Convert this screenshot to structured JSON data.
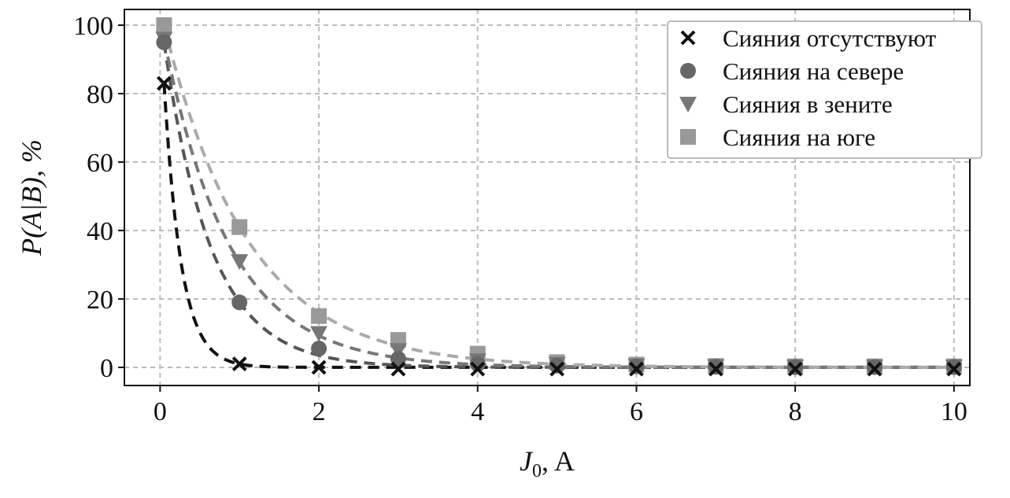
{
  "chart_data": {
    "type": "scatter",
    "title": "",
    "xlabel": "J₀, A",
    "xlabel_main": "J",
    "xlabel_sub": "0",
    "xlabel_unit": ", A",
    "ylabel": "P(A|B), %",
    "xlim": [
      -0.45,
      10.2
    ],
    "ylim": [
      -5.3,
      104.6
    ],
    "xticks": [
      0,
      2,
      4,
      6,
      8,
      10
    ],
    "yticks": [
      0,
      20,
      40,
      60,
      80,
      100
    ],
    "xtick_labels": [
      "0",
      "2",
      "4",
      "6",
      "8",
      "10"
    ],
    "ytick_labels": [
      "0",
      "20",
      "40",
      "60",
      "80",
      "100"
    ],
    "grid": true,
    "legend_position": "top-right",
    "x": [
      0.05,
      1,
      2,
      3,
      4,
      5,
      6,
      7,
      8,
      9,
      10
    ],
    "series": [
      {
        "name": "Сияния отсутствуют",
        "marker": "x",
        "color": "#111111",
        "line_color": "#111111",
        "values": [
          83,
          1,
          0,
          -0.5,
          -0.5,
          -0.5,
          -0.5,
          -0.5,
          -0.5,
          -0.5,
          -0.5
        ]
      },
      {
        "name": "Сияния на севере",
        "marker": "circle",
        "color": "#666666",
        "line_color": "#555555",
        "values": [
          95,
          19,
          5.5,
          2.5,
          1,
          0.5,
          0.3,
          0.2,
          0.1,
          0.1,
          0.1
        ]
      },
      {
        "name": "Сияния в зените",
        "marker": "triangle-down",
        "color": "#777777",
        "line_color": "#777777",
        "values": [
          96,
          31,
          10,
          5,
          2,
          1,
          0.5,
          0.3,
          0.2,
          0.2,
          0.2
        ]
      },
      {
        "name": "Сияния на юге",
        "marker": "square",
        "color": "#999999",
        "line_color": "#aaaaaa",
        "values": [
          100,
          41,
          15,
          8,
          4,
          1.5,
          0.8,
          0.4,
          0.3,
          0.3,
          0.3
        ]
      }
    ]
  }
}
